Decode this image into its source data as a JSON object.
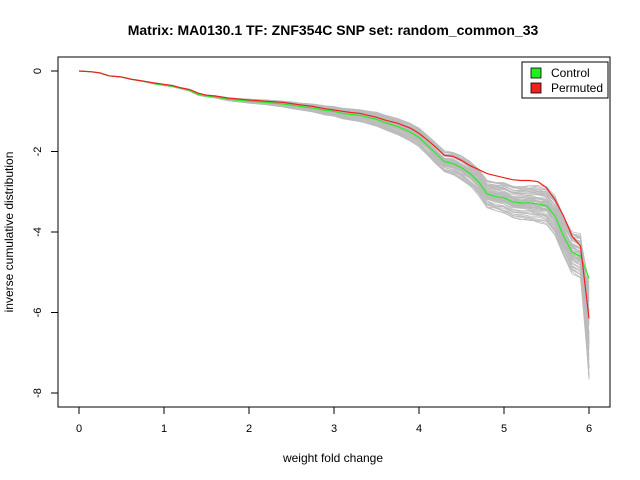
{
  "chart_data": {
    "type": "line",
    "title": "Matrix: MA0130.1 TF: ZNF354C SNP set: random_common_33",
    "xlabel": "weight fold change",
    "ylabel": "inverse cumulative distribution",
    "xlim": [
      0,
      6
    ],
    "ylim": [
      -8,
      0
    ],
    "x_ticks": [
      0,
      1,
      2,
      3,
      4,
      5,
      6
    ],
    "y_ticks": [
      0,
      -2,
      -4,
      -6,
      -8
    ],
    "grid": false,
    "legend": {
      "position": "top-right",
      "entries": [
        {
          "name": "Control",
          "color": "#22ee22"
        },
        {
          "name": "Permuted",
          "color": "#ee2222"
        }
      ]
    },
    "background_series_color": "#bbbbbb",
    "background_series_count": 60,
    "series": [
      {
        "name": "Control",
        "color": "#22ee22",
        "x": [
          0,
          0.15,
          0.25,
          0.35,
          0.5,
          0.6,
          0.75,
          0.9,
          1.0,
          1.1,
          1.2,
          1.3,
          1.4,
          1.5,
          1.6,
          1.75,
          1.9,
          2.0,
          2.2,
          2.4,
          2.5,
          2.6,
          2.75,
          2.9,
          3.0,
          3.1,
          3.2,
          3.3,
          3.4,
          3.5,
          3.6,
          3.75,
          3.9,
          4.0,
          4.1,
          4.2,
          4.3,
          4.4,
          4.5,
          4.6,
          4.7,
          4.8,
          4.9,
          5.0,
          5.1,
          5.2,
          5.3,
          5.4,
          5.5,
          5.6,
          5.7,
          5.8,
          5.9,
          6.0
        ],
        "y": [
          0,
          -0.02,
          -0.05,
          -0.12,
          -0.15,
          -0.2,
          -0.25,
          -0.32,
          -0.35,
          -0.38,
          -0.43,
          -0.48,
          -0.58,
          -0.62,
          -0.64,
          -0.7,
          -0.73,
          -0.75,
          -0.78,
          -0.82,
          -0.85,
          -0.88,
          -0.92,
          -0.98,
          -1.0,
          -1.05,
          -1.08,
          -1.1,
          -1.15,
          -1.2,
          -1.28,
          -1.38,
          -1.52,
          -1.65,
          -1.85,
          -2.05,
          -2.25,
          -2.3,
          -2.4,
          -2.55,
          -2.75,
          -3.05,
          -3.12,
          -3.15,
          -3.25,
          -3.28,
          -3.28,
          -3.3,
          -3.35,
          -3.6,
          -4.1,
          -4.5,
          -4.6,
          -5.15
        ]
      },
      {
        "name": "Permuted",
        "color": "#ee2222",
        "x": [
          0,
          0.15,
          0.25,
          0.35,
          0.5,
          0.6,
          0.75,
          0.9,
          1.0,
          1.1,
          1.2,
          1.3,
          1.4,
          1.5,
          1.6,
          1.75,
          1.9,
          2.0,
          2.2,
          2.4,
          2.5,
          2.6,
          2.75,
          2.9,
          3.0,
          3.1,
          3.2,
          3.3,
          3.4,
          3.5,
          3.6,
          3.75,
          3.9,
          4.0,
          4.1,
          4.2,
          4.3,
          4.4,
          4.5,
          4.6,
          4.7,
          4.8,
          4.9,
          5.0,
          5.1,
          5.2,
          5.3,
          5.4,
          5.5,
          5.6,
          5.7,
          5.8,
          5.9,
          6.0
        ],
        "y": [
          0,
          -0.02,
          -0.05,
          -0.12,
          -0.15,
          -0.2,
          -0.25,
          -0.3,
          -0.33,
          -0.36,
          -0.42,
          -0.46,
          -0.55,
          -0.6,
          -0.62,
          -0.67,
          -0.7,
          -0.72,
          -0.75,
          -0.78,
          -0.81,
          -0.84,
          -0.88,
          -0.94,
          -0.97,
          -1.0,
          -1.03,
          -1.05,
          -1.1,
          -1.15,
          -1.22,
          -1.3,
          -1.42,
          -1.55,
          -1.72,
          -1.9,
          -2.1,
          -2.12,
          -2.22,
          -2.35,
          -2.45,
          -2.55,
          -2.6,
          -2.65,
          -2.7,
          -2.72,
          -2.72,
          -2.75,
          -2.9,
          -3.2,
          -3.6,
          -4.1,
          -4.35,
          -6.15
        ]
      }
    ]
  }
}
